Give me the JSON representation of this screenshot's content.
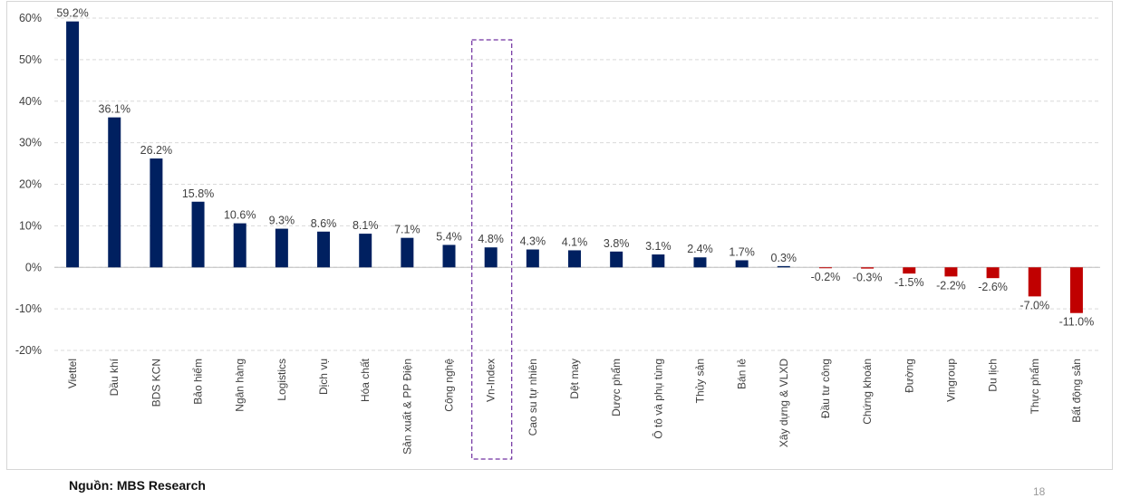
{
  "source": "Nguồn: MBS Research",
  "page_number": "18",
  "colors": {
    "positive": "#002060",
    "negative": "#C00000",
    "grid": "#d9d9d9",
    "highlight_box": "#7030A0"
  },
  "chart_data": {
    "type": "bar",
    "title": "",
    "xlabel": "",
    "ylabel": "",
    "ylim": [
      -20,
      60
    ],
    "yticks": [
      60,
      50,
      40,
      30,
      20,
      10,
      0,
      -10,
      -20
    ],
    "ytick_labels": [
      "60%",
      "50%",
      "40%",
      "30%",
      "20%",
      "10%",
      "0%",
      "-10%",
      "-20%"
    ],
    "categories": [
      "Viettel",
      "Dầu khí",
      "BDS KCN",
      "Bảo hiểm",
      "Ngân hàng",
      "Logistics",
      "Dịch vụ",
      "Hóa chất",
      "Sản xuất & PP Điện",
      "Công nghệ",
      "Vn-Index",
      "Cao su tự nhiên",
      "Dệt may",
      "Dược phẩm",
      "Ô tô và phụ tùng",
      "Thủy sản",
      "Bán lẻ",
      "Xây dựng & VLXD",
      "Đầu tư công",
      "Chứng khoán",
      "Đường",
      "Vingroup",
      "Du lịch",
      "Thực phẩm",
      "Bất động sản"
    ],
    "values": [
      59.2,
      36.1,
      26.2,
      15.8,
      10.6,
      9.3,
      8.6,
      8.1,
      7.1,
      5.4,
      4.8,
      4.3,
      4.1,
      3.8,
      3.1,
      2.4,
      1.7,
      0.3,
      -0.2,
      -0.3,
      -1.5,
      -2.2,
      -2.6,
      -7.0,
      -11.0
    ],
    "value_labels": [
      "59.2%",
      "36.1%",
      "26.2%",
      "15.8%",
      "10.6%",
      "9.3%",
      "8.6%",
      "8.1%",
      "7.1%",
      "5.4%",
      "4.8%",
      "4.3%",
      "4.1%",
      "3.8%",
      "3.1%",
      "2.4%",
      "1.7%",
      "0.3%",
      "-0.2%",
      "-0.3%",
      "-1.5%",
      "-2.2%",
      "-2.6%",
      "-7.0%",
      "-11.0%"
    ],
    "highlighted_category": "Vn-Index",
    "grid": true,
    "legend": "none"
  }
}
